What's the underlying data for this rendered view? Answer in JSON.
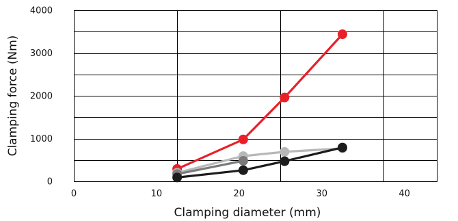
{
  "chart_data": {
    "type": "line",
    "title": "",
    "xlabel": "Clamping diameter (mm)",
    "ylabel": "Clamping force (Nm)",
    "xlim": [
      0,
      44
    ],
    "ylim": [
      0,
      4000
    ],
    "x_ticks": [
      0,
      10,
      20,
      30,
      40
    ],
    "y_ticks": [
      0,
      1000,
      2000,
      3000,
      4000
    ],
    "x_gridlines": [
      0,
      12.5,
      25,
      37.5
    ],
    "y_gridlines": [
      500,
      1000,
      1500,
      2000,
      2500,
      3000,
      3500,
      4000
    ],
    "grid": true,
    "legend": "none",
    "series": [
      {
        "color": "#e8202a",
        "x": [
          12.5,
          20.5,
          25.5,
          32.5
        ],
        "y": [
          290,
          980,
          1960,
          3440
        ]
      },
      {
        "color": "#b8b8b8",
        "x": [
          12.5,
          20.5,
          25.5,
          32.5
        ],
        "y": [
          200,
          590,
          690,
          770
        ]
      },
      {
        "color": "#7a7a7a",
        "x": [
          12.5,
          20.5
        ],
        "y": [
          170,
          480
        ]
      },
      {
        "color": "#1c1c1c",
        "x": [
          12.5,
          20.5,
          25.5,
          32.5
        ],
        "y": [
          90,
          260,
          470,
          790
        ]
      }
    ]
  }
}
